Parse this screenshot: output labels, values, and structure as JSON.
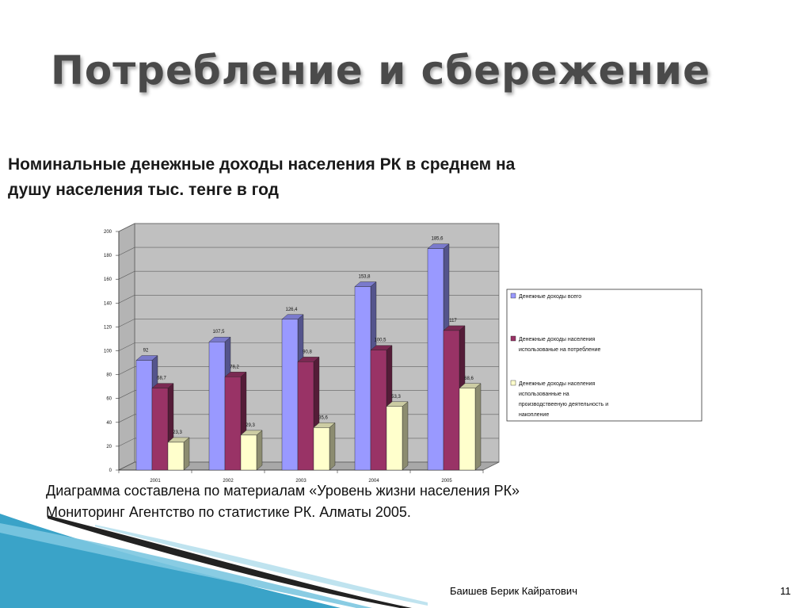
{
  "slide": {
    "title": "Потребление и сбережение",
    "heading_line1": "Номинальные денежные доходы населения РК в среднем на",
    "heading_line2": "душу населения тыс. тенге в год",
    "source_line1": "Диаграмма составлена по материалам «Уровень жизни населения РК»",
    "source_line2": "Мониторинг Агентство по статистике РК. Алматы 2005.",
    "author": "Баишев Берик Кайратович",
    "page_number": "11"
  },
  "chart_data": {
    "type": "bar",
    "categories": [
      "2001",
      "2002",
      "2003",
      "2004",
      "2005"
    ],
    "series": [
      {
        "name": "Денежные доходы всего",
        "values": [
          92,
          107.5,
          126.4,
          153.8,
          185.6
        ],
        "labels": [
          "92",
          "107,5",
          "126,4",
          "153,8",
          "185,6"
        ],
        "color": "#9999ff"
      },
      {
        "name": "Денежные доходы населения использованые на потребление",
        "legend_lines": [
          "Денежные доходы населения",
          "использованые на потребление"
        ],
        "values": [
          68.7,
          78.2,
          90.8,
          100.5,
          117
        ],
        "labels": [
          "68,7",
          "78,2",
          "90,8",
          "100,5",
          "117"
        ],
        "color": "#993366"
      },
      {
        "name": "Денежные доходы населения использованные на производствееную деятельность и накопление",
        "legend_lines": [
          "Денежные доходы населения",
          "использованные на",
          "производствееную деятельность и",
          "накопление"
        ],
        "values": [
          23.3,
          29.3,
          35.6,
          53.3,
          68.6
        ],
        "labels": [
          "23,3",
          "29,3",
          "35,6",
          "53,3",
          "68,6"
        ],
        "color": "#ffffcc"
      }
    ],
    "yticks": [
      "0",
      "20",
      "40",
      "60",
      "80",
      "100",
      "120",
      "140",
      "160",
      "180",
      "200"
    ],
    "ylim": [
      0,
      200
    ],
    "grid": true,
    "legend_position": "right",
    "colors": {
      "wall": "#c0c0c0",
      "floor": "#a8a8a8",
      "grid": "#606060"
    }
  }
}
